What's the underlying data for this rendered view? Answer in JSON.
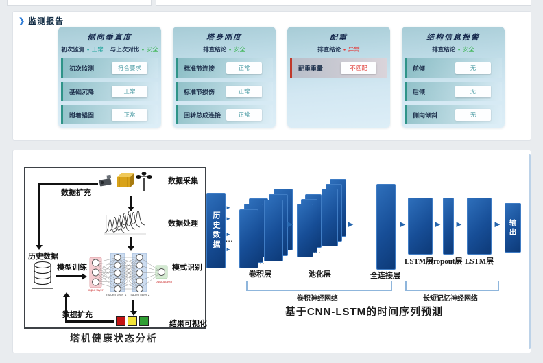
{
  "icons": {
    "chevron": "❯",
    "dot": "●",
    "arrow": "►",
    "ellipsis": "..."
  },
  "colors": {
    "normal_teal": "#1fa39a",
    "safe_green": "#35b34a",
    "alert_red": "#e23c3c",
    "accent_blue": "#2e7cd6",
    "layer_blue": "#14498f"
  },
  "report": {
    "header": "监测报告",
    "cards": [
      {
        "title": "侧向垂直度",
        "statuses": [
          {
            "label": "初次监测",
            "value": "正常"
          },
          {
            "label": "与上次对比",
            "value": "安全"
          }
        ],
        "rows": [
          {
            "label": "初次监测",
            "value": "符合要求"
          },
          {
            "label": "基础沉降",
            "value": "正常"
          },
          {
            "label": "附着锚固",
            "value": "正常"
          }
        ]
      },
      {
        "title": "塔身刚度",
        "statuses": [
          {
            "label": "排查结论",
            "value": "安全"
          }
        ],
        "rows": [
          {
            "label": "标准节连接",
            "value": "正常"
          },
          {
            "label": "标准节损伤",
            "value": "正常"
          },
          {
            "label": "回转总成连接",
            "value": "正常"
          }
        ]
      },
      {
        "title": "配重",
        "statuses": [
          {
            "label": "排查结论",
            "value": "异常"
          }
        ],
        "rows": [
          {
            "label": "配重重量",
            "value": "不匹配"
          }
        ]
      },
      {
        "title": "结构信息报警",
        "statuses": [
          {
            "label": "排查结论",
            "value": "安全"
          }
        ],
        "rows": [
          {
            "label": "前倾",
            "value": "无"
          },
          {
            "label": "后倾",
            "value": "无"
          },
          {
            "label": "侧向倾斜",
            "value": "无"
          }
        ]
      }
    ]
  },
  "flow": {
    "collect": "数据采集",
    "augment_top": "数据扩充",
    "process": "数据处理",
    "history": "历史数据",
    "train": "模型训练",
    "recognize": "模式识别",
    "augment_bottom": "数据扩充",
    "visualize": "结果可视化",
    "nn": {
      "input": "input layer",
      "h1": "hidden layer 1",
      "h2": "hidden layer 2",
      "out": "output layer"
    },
    "caption": "塔机健康状态分析"
  },
  "cnn": {
    "input": "历史数据",
    "conv": "卷积层",
    "pool": "池化层",
    "fc": "全连接层",
    "lstm1": "LSTM层",
    "dropout": "Dropout层",
    "lstm2": "LSTM层",
    "output": "输出",
    "group_cnn": "卷积神经网络",
    "group_lstm": "长短记忆神经网络",
    "caption": "基于CNN-LSTM的时间序列预测"
  }
}
